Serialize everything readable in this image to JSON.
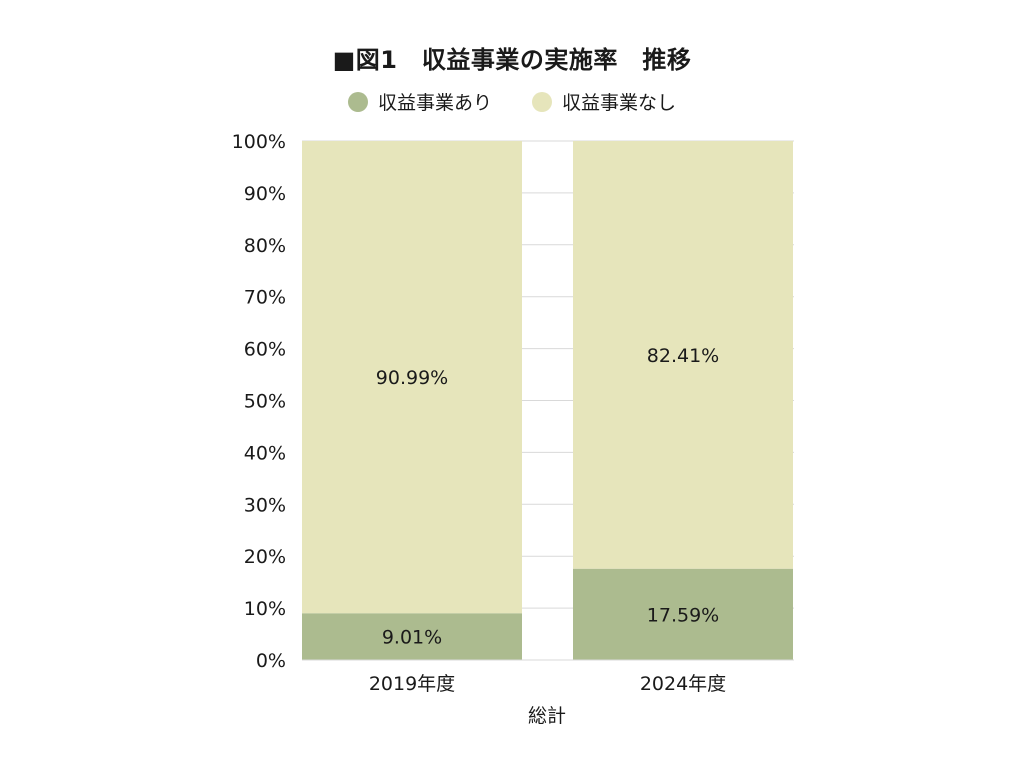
{
  "chart_data": {
    "type": "bar",
    "stacked": true,
    "title": "■図1　収益事業の実施率　推移",
    "xlabel": "総計",
    "ylabel": "",
    "categories": [
      "2019年度",
      "2024年度"
    ],
    "series": [
      {
        "name": "収益事業あり",
        "values": [
          9.01,
          17.59
        ],
        "labels": [
          "9.01%",
          "17.59%"
        ],
        "color": "#acbb8f"
      },
      {
        "name": "収益事業なし",
        "values": [
          90.99,
          82.41
        ],
        "labels": [
          "90.99%",
          "82.41%"
        ],
        "color": "#e6e5bb"
      }
    ],
    "ylim": [
      0,
      100
    ],
    "yticks": [
      "0%",
      "10%",
      "20%",
      "30%",
      "40%",
      "50%",
      "60%",
      "70%",
      "80%",
      "90%",
      "100%"
    ],
    "grid": true,
    "legend_position": "top"
  }
}
